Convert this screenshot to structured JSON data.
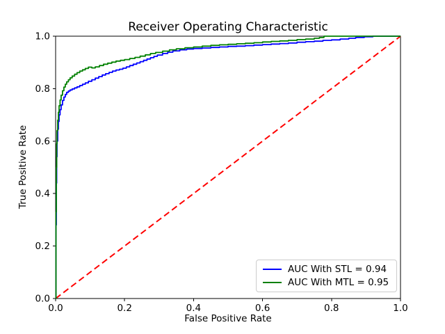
{
  "figure": {
    "background": "#ffffff",
    "axes_color": "#000000"
  },
  "chart_data": {
    "type": "line",
    "title": "Receiver Operating Characteristic",
    "xlabel": "False Positive Rate",
    "ylabel": "True Positive Rate",
    "xlim": [
      0.0,
      1.0
    ],
    "ylim": [
      0.0,
      1.0
    ],
    "xticks": [
      "0.0",
      "0.2",
      "0.4",
      "0.6",
      "0.8",
      "1.0"
    ],
    "yticks": [
      "0.0",
      "0.2",
      "0.4",
      "0.6",
      "0.8",
      "1.0"
    ],
    "grid": false,
    "legend_position": "lower right",
    "series": [
      {
        "name": "AUC With STL = 0.94",
        "auc": 0.94,
        "color": "#0000ff",
        "style": "solid",
        "points": [
          [
            0,
            0
          ],
          [
            0.001,
            0.28
          ],
          [
            0.002,
            0.44
          ],
          [
            0.003,
            0.54
          ],
          [
            0.004,
            0.6
          ],
          [
            0.006,
            0.645
          ],
          [
            0.008,
            0.675
          ],
          [
            0.01,
            0.7
          ],
          [
            0.013,
            0.72
          ],
          [
            0.016,
            0.738
          ],
          [
            0.02,
            0.755
          ],
          [
            0.024,
            0.768
          ],
          [
            0.028,
            0.778
          ],
          [
            0.032,
            0.786
          ],
          [
            0.037,
            0.791
          ],
          [
            0.042,
            0.795
          ],
          [
            0.048,
            0.799
          ],
          [
            0.055,
            0.803
          ],
          [
            0.062,
            0.807
          ],
          [
            0.07,
            0.812
          ],
          [
            0.078,
            0.817
          ],
          [
            0.086,
            0.822
          ],
          [
            0.095,
            0.828
          ],
          [
            0.105,
            0.834
          ],
          [
            0.115,
            0.84
          ],
          [
            0.125,
            0.846
          ],
          [
            0.135,
            0.852
          ],
          [
            0.145,
            0.857
          ],
          [
            0.155,
            0.862
          ],
          [
            0.165,
            0.867
          ],
          [
            0.175,
            0.871
          ],
          [
            0.185,
            0.874
          ],
          [
            0.195,
            0.878
          ],
          [
            0.205,
            0.883
          ],
          [
            0.215,
            0.888
          ],
          [
            0.225,
            0.893
          ],
          [
            0.235,
            0.898
          ],
          [
            0.245,
            0.903
          ],
          [
            0.255,
            0.908
          ],
          [
            0.265,
            0.913
          ],
          [
            0.275,
            0.918
          ],
          [
            0.285,
            0.923
          ],
          [
            0.295,
            0.928
          ],
          [
            0.31,
            0.934
          ],
          [
            0.325,
            0.939
          ],
          [
            0.34,
            0.944
          ],
          [
            0.36,
            0.948
          ],
          [
            0.38,
            0.951
          ],
          [
            0.4,
            0.953
          ],
          [
            0.425,
            0.955
          ],
          [
            0.45,
            0.957
          ],
          [
            0.475,
            0.959
          ],
          [
            0.5,
            0.961
          ],
          [
            0.525,
            0.962
          ],
          [
            0.55,
            0.964
          ],
          [
            0.575,
            0.966
          ],
          [
            0.6,
            0.968
          ],
          [
            0.625,
            0.97
          ],
          [
            0.65,
            0.972
          ],
          [
            0.675,
            0.974
          ],
          [
            0.7,
            0.977
          ],
          [
            0.725,
            0.979
          ],
          [
            0.75,
            0.981
          ],
          [
            0.775,
            0.984
          ],
          [
            0.8,
            0.986
          ],
          [
            0.825,
            0.989
          ],
          [
            0.85,
            0.992
          ],
          [
            0.87,
            0.995
          ],
          [
            0.895,
            0.998
          ],
          [
            0.92,
            1.0
          ],
          [
            1.0,
            1.0
          ]
        ]
      },
      {
        "name": "AUC With MTL = 0.95",
        "auc": 0.95,
        "color": "#008000",
        "style": "solid",
        "points": [
          [
            0,
            0
          ],
          [
            0.001,
            0.33
          ],
          [
            0.002,
            0.5
          ],
          [
            0.003,
            0.59
          ],
          [
            0.004,
            0.64
          ],
          [
            0.006,
            0.68
          ],
          [
            0.008,
            0.71
          ],
          [
            0.01,
            0.735
          ],
          [
            0.013,
            0.757
          ],
          [
            0.016,
            0.775
          ],
          [
            0.02,
            0.792
          ],
          [
            0.024,
            0.806
          ],
          [
            0.028,
            0.817
          ],
          [
            0.032,
            0.826
          ],
          [
            0.037,
            0.834
          ],
          [
            0.042,
            0.841
          ],
          [
            0.048,
            0.848
          ],
          [
            0.055,
            0.855
          ],
          [
            0.062,
            0.861
          ],
          [
            0.07,
            0.867
          ],
          [
            0.078,
            0.872
          ],
          [
            0.086,
            0.877
          ],
          [
            0.095,
            0.882
          ],
          [
            0.105,
            0.879
          ],
          [
            0.115,
            0.883
          ],
          [
            0.127,
            0.888
          ],
          [
            0.139,
            0.893
          ],
          [
            0.151,
            0.897
          ],
          [
            0.163,
            0.901
          ],
          [
            0.175,
            0.905
          ],
          [
            0.188,
            0.908
          ],
          [
            0.2,
            0.911
          ],
          [
            0.215,
            0.915
          ],
          [
            0.23,
            0.919
          ],
          [
            0.245,
            0.924
          ],
          [
            0.26,
            0.929
          ],
          [
            0.275,
            0.934
          ],
          [
            0.29,
            0.938
          ],
          [
            0.31,
            0.943
          ],
          [
            0.33,
            0.948
          ],
          [
            0.35,
            0.952
          ],
          [
            0.375,
            0.956
          ],
          [
            0.4,
            0.959
          ],
          [
            0.425,
            0.962
          ],
          [
            0.45,
            0.965
          ],
          [
            0.475,
            0.967
          ],
          [
            0.5,
            0.969
          ],
          [
            0.525,
            0.971
          ],
          [
            0.55,
            0.973
          ],
          [
            0.575,
            0.975
          ],
          [
            0.6,
            0.978
          ],
          [
            0.625,
            0.98
          ],
          [
            0.65,
            0.982
          ],
          [
            0.675,
            0.984
          ],
          [
            0.7,
            0.987
          ],
          [
            0.725,
            0.989
          ],
          [
            0.75,
            0.992
          ],
          [
            0.765,
            0.995
          ],
          [
            0.778,
            1.0
          ],
          [
            1.0,
            1.0
          ]
        ]
      }
    ],
    "reference_line": {
      "name": "chance-diagonal",
      "color": "#ff0000",
      "style": "dashed",
      "points": [
        [
          0,
          0
        ],
        [
          1,
          1
        ]
      ]
    }
  }
}
